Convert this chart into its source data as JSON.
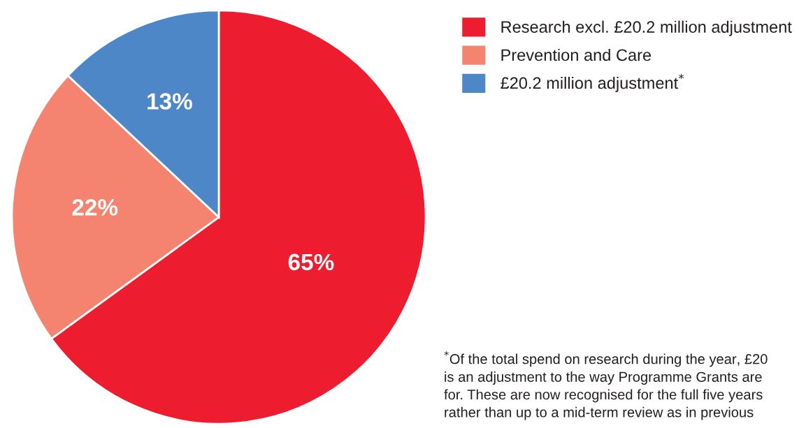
{
  "chart_data": {
    "type": "pie",
    "categories": [
      "Research excl. £20.2 million adjustment",
      "Prevention and Care",
      "£20.2 million adjustment$^{*}$"
    ],
    "values": [
      65,
      22,
      13
    ],
    "colors": [
      "#ed1c2e",
      "#f4846f",
      "#4d87c7"
    ],
    "value_labels": [
      "65%",
      "22%",
      "13%"
    ],
    "legend": "top right",
    "annotations": [
      "$^{*}$Of the total spend on research during the year, £20\nis an adjustment to the way Programme Grants are\nfor. These are now recognised for the full five years\nrather than up to a mid-term review as in previous"
    ]
  }
}
